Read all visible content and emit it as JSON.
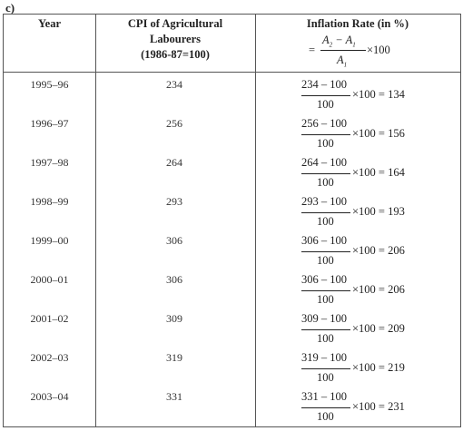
{
  "label": "c)",
  "headers": {
    "year": "Year",
    "cpi": [
      "CPI of Agricultural",
      "Labourers",
      "(1986-87=100)"
    ],
    "inflation": "Inflation Rate (in %)"
  },
  "formula": {
    "eq": "=",
    "a2": "A",
    "minus": " − ",
    "a1": "A",
    "sub2": "2",
    "sub1": "1",
    "den": "A",
    "tail": "×100"
  },
  "rows": [
    {
      "year": "1995–96",
      "cpi": "234",
      "num": "234 – 100",
      "den": "100",
      "result": "×100 = 134"
    },
    {
      "year": "1996–97",
      "cpi": "256",
      "num": "256 – 100",
      "den": "100",
      "result": "×100 = 156"
    },
    {
      "year": "1997–98",
      "cpi": "264",
      "num": "264 – 100",
      "den": "100",
      "result": "×100 = 164"
    },
    {
      "year": "1998–99",
      "cpi": "293",
      "num": "293 – 100",
      "den": "100",
      "result": "×100 = 193"
    },
    {
      "year": "1999–00",
      "cpi": "306",
      "num": "306 – 100",
      "den": "100",
      "result": "×100 = 206"
    },
    {
      "year": "2000–01",
      "cpi": "306",
      "num": "306 – 100",
      "den": "100",
      "result": "×100 = 206"
    },
    {
      "year": "2001–02",
      "cpi": "309",
      "num": "309 – 100",
      "den": "100",
      "result": "×100 = 209"
    },
    {
      "year": "2002–03",
      "cpi": "319",
      "num": "319 – 100",
      "den": "100",
      "result": "×100 = 219"
    },
    {
      "year": "2003–04",
      "cpi": "331",
      "num": "331 – 100",
      "den": "100",
      "result": "×100 = 231"
    }
  ]
}
